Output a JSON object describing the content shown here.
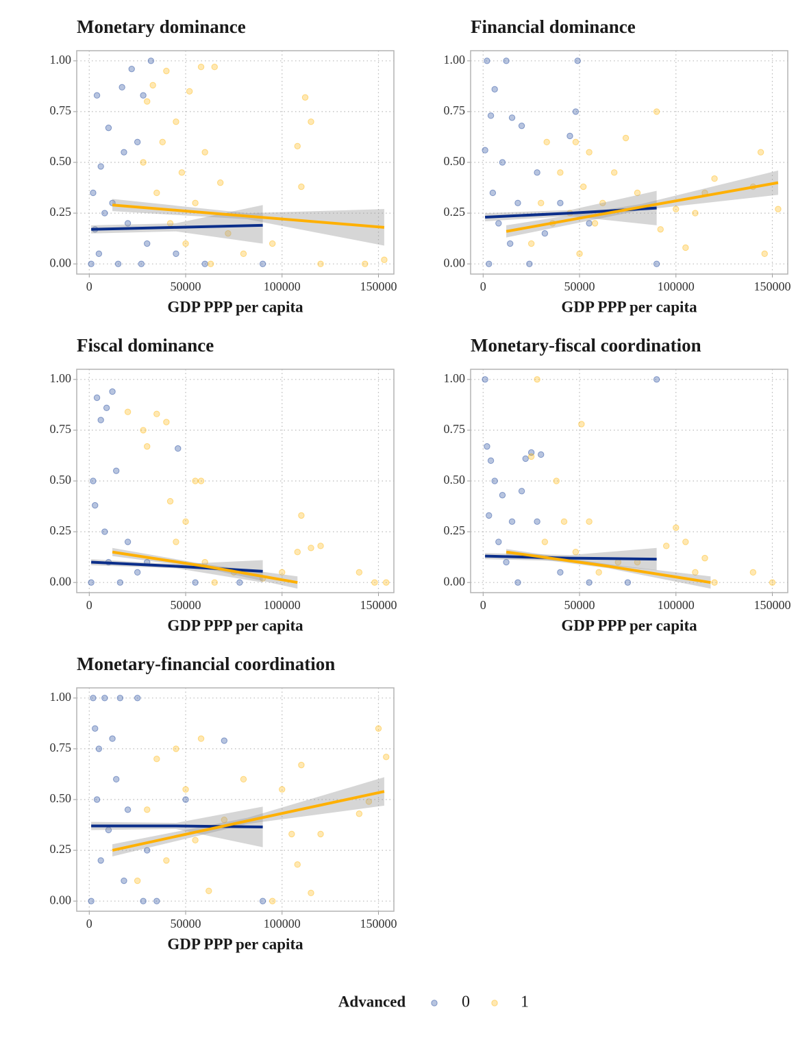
{
  "legend_title": "Advanced",
  "chart_data": [
    {
      "type": "scatter",
      "title": "Monetary dominance",
      "x_label": "GDP PPP per capita",
      "xlim": [
        -6500,
        158000
      ],
      "ylim": [
        -0.05,
        1.05
      ],
      "xticks": [
        0,
        50000,
        100000,
        150000
      ],
      "yticks": [
        {
          "value": 0,
          "label": "0.00"
        },
        {
          "value": 0.25,
          "label": "0.25"
        },
        {
          "value": 0.5,
          "label": "0.50"
        },
        {
          "value": 0.75,
          "label": "0.75"
        },
        {
          "value": 1,
          "label": "1.00"
        }
      ],
      "series": [
        {
          "name": "0",
          "color": "#123b96",
          "x": [
            1000,
            2000,
            3000,
            4000,
            5000,
            6000,
            8000,
            10000,
            12000,
            15000,
            17000,
            18000,
            20000,
            22000,
            25000,
            27000,
            28000,
            30000,
            32000,
            45000,
            60000,
            90000
          ],
          "values": [
            0,
            0.35,
            0.17,
            0.83,
            0.05,
            0.48,
            0.25,
            0.67,
            0.3,
            0,
            0.87,
            0.55,
            0.2,
            0.96,
            0.6,
            0,
            0.83,
            0.1,
            1,
            0.05,
            0,
            0
          ]
        },
        {
          "name": "1",
          "color": "#ffb300",
          "x": [
            28000,
            30000,
            33000,
            35000,
            38000,
            40000,
            42000,
            45000,
            48000,
            50000,
            52000,
            55000,
            58000,
            60000,
            63000,
            65000,
            68000,
            72000,
            80000,
            95000,
            108000,
            110000,
            112000,
            115000,
            120000,
            143000,
            153000
          ],
          "values": [
            0.5,
            0.8,
            0.88,
            0.35,
            0.6,
            0.95,
            0.2,
            0.7,
            0.45,
            0.1,
            0.85,
            0.3,
            0.97,
            0.55,
            0,
            0.97,
            0.4,
            0.15,
            0.05,
            0.1,
            0.58,
            0.38,
            0.82,
            0.7,
            0,
            0,
            0.02
          ]
        }
      ],
      "fit_lines": [
        {
          "color": "#0b2e8a",
          "x": [
            1000,
            45000,
            90000
          ],
          "values": [
            0.17,
            0.18,
            0.19
          ],
          "lower": [
            0.15,
            0.16,
            0.1
          ],
          "upper": [
            0.19,
            0.2,
            0.29
          ]
        },
        {
          "color": "#ffb000",
          "x": [
            12000,
            82000,
            153000
          ],
          "values": [
            0.29,
            0.235,
            0.18
          ],
          "lower": [
            0.26,
            0.22,
            0.09
          ],
          "upper": [
            0.32,
            0.25,
            0.27
          ]
        }
      ]
    },
    {
      "type": "scatter",
      "title": "Financial dominance",
      "x_label": "GDP PPP per capita",
      "xlim": [
        -6500,
        158000
      ],
      "ylim": [
        -0.05,
        1.05
      ],
      "xticks": [
        0,
        50000,
        100000,
        150000
      ],
      "yticks": [
        {
          "value": 0,
          "label": "0.00"
        },
        {
          "value": 0.25,
          "label": "0.25"
        },
        {
          "value": 0.5,
          "label": "0.50"
        },
        {
          "value": 0.75,
          "label": "0.75"
        },
        {
          "value": 1,
          "label": "1.00"
        }
      ],
      "series": [
        {
          "name": "0",
          "color": "#123b96",
          "x": [
            1000,
            2000,
            3000,
            4000,
            5000,
            6000,
            8000,
            10000,
            12000,
            14000,
            15000,
            18000,
            20000,
            24000,
            28000,
            32000,
            40000,
            45000,
            48000,
            49000,
            55000,
            90000
          ],
          "values": [
            0.56,
            1,
            0,
            0.73,
            0.35,
            0.86,
            0.2,
            0.5,
            1,
            0.1,
            0.72,
            0.3,
            0.68,
            0,
            0.45,
            0.15,
            0.3,
            0.63,
            0.75,
            1,
            0.2,
            0
          ]
        },
        {
          "name": "1",
          "color": "#ffb300",
          "x": [
            25000,
            30000,
            33000,
            36000,
            40000,
            45000,
            48000,
            50000,
            52000,
            55000,
            58000,
            62000,
            68000,
            74000,
            80000,
            90000,
            92000,
            100000,
            105000,
            110000,
            115000,
            120000,
            140000,
            144000,
            146000,
            153000
          ],
          "values": [
            0.1,
            0.3,
            0.6,
            0.2,
            0.45,
            0.25,
            0.6,
            0.05,
            0.38,
            0.55,
            0.2,
            0.3,
            0.45,
            0.62,
            0.35,
            0.75,
            0.17,
            0.27,
            0.08,
            0.25,
            0.35,
            0.42,
            0.38,
            0.55,
            0.05,
            0.27
          ]
        }
      ],
      "fit_lines": [
        {
          "color": "#0b2e8a",
          "x": [
            1000,
            45000,
            90000
          ],
          "values": [
            0.23,
            0.25,
            0.275
          ],
          "lower": [
            0.21,
            0.235,
            0.19
          ],
          "upper": [
            0.25,
            0.265,
            0.36
          ]
        },
        {
          "color": "#ffb000",
          "x": [
            12000,
            82000,
            153000
          ],
          "values": [
            0.16,
            0.28,
            0.4
          ],
          "lower": [
            0.13,
            0.265,
            0.34
          ],
          "upper": [
            0.19,
            0.295,
            0.46
          ]
        }
      ]
    },
    {
      "type": "scatter",
      "title": "Fiscal dominance",
      "x_label": "GDP PPP per capita",
      "xlim": [
        -6500,
        158000
      ],
      "ylim": [
        -0.05,
        1.05
      ],
      "xticks": [
        0,
        50000,
        100000,
        150000
      ],
      "yticks": [
        {
          "value": 0,
          "label": "0.00"
        },
        {
          "value": 0.25,
          "label": "0.25"
        },
        {
          "value": 0.5,
          "label": "0.50"
        },
        {
          "value": 0.75,
          "label": "0.75"
        },
        {
          "value": 1,
          "label": "1.00"
        }
      ],
      "series": [
        {
          "name": "0",
          "color": "#123b96",
          "x": [
            1000,
            2000,
            3000,
            4000,
            6000,
            8000,
            9000,
            10000,
            12000,
            14000,
            16000,
            20000,
            25000,
            30000,
            46000,
            55000,
            78000
          ],
          "values": [
            0,
            0.5,
            0.38,
            0.91,
            0.8,
            0.25,
            0.86,
            0.1,
            0.94,
            0.55,
            0,
            0.2,
            0.05,
            0.1,
            0.66,
            0,
            0
          ]
        },
        {
          "name": "1",
          "color": "#ffb300",
          "x": [
            20000,
            28000,
            30000,
            35000,
            40000,
            42000,
            45000,
            50000,
            55000,
            58000,
            60000,
            65000,
            75000,
            90000,
            100000,
            108000,
            110000,
            115000,
            120000,
            140000,
            148000,
            154000
          ],
          "values": [
            0.84,
            0.75,
            0.67,
            0.83,
            0.79,
            0.4,
            0.2,
            0.3,
            0.5,
            0.5,
            0.1,
            0,
            0.05,
            0.02,
            0.05,
            0.15,
            0.33,
            0.17,
            0.18,
            0.05,
            0,
            0
          ]
        }
      ],
      "fit_lines": [
        {
          "color": "#0b2e8a",
          "x": [
            1000,
            45000,
            90000
          ],
          "values": [
            0.1,
            0.08,
            0.055
          ],
          "lower": [
            0.085,
            0.07,
            0
          ],
          "upper": [
            0.115,
            0.09,
            0.11
          ]
        },
        {
          "color": "#ffb000",
          "x": [
            12000,
            60000,
            108000
          ],
          "values": [
            0.15,
            0.08,
            0
          ],
          "lower": [
            0.13,
            0.07,
            -0.03
          ],
          "upper": [
            0.17,
            0.09,
            0.03
          ]
        }
      ]
    },
    {
      "type": "scatter",
      "title": "Monetary-fiscal coordination",
      "x_label": "GDP PPP per capita",
      "xlim": [
        -6500,
        158000
      ],
      "ylim": [
        -0.05,
        1.05
      ],
      "xticks": [
        0,
        50000,
        100000,
        150000
      ],
      "yticks": [
        {
          "value": 0,
          "label": "0.00"
        },
        {
          "value": 0.25,
          "label": "0.25"
        },
        {
          "value": 0.5,
          "label": "0.50"
        },
        {
          "value": 0.75,
          "label": "0.75"
        },
        {
          "value": 1,
          "label": "1.00"
        }
      ],
      "series": [
        {
          "name": "0",
          "color": "#123b96",
          "x": [
            1000,
            2000,
            3000,
            4000,
            6000,
            8000,
            10000,
            12000,
            15000,
            18000,
            20000,
            22000,
            25000,
            28000,
            30000,
            40000,
            55000,
            75000,
            90000
          ],
          "values": [
            1,
            0.67,
            0.33,
            0.6,
            0.5,
            0.2,
            0.43,
            0.1,
            0.3,
            0,
            0.45,
            0.61,
            0.64,
            0.3,
            0.63,
            0.05,
            0,
            0,
            1
          ]
        },
        {
          "name": "1",
          "color": "#ffb300",
          "x": [
            25000,
            28000,
            32000,
            38000,
            42000,
            48000,
            51000,
            55000,
            60000,
            70000,
            80000,
            95000,
            100000,
            105000,
            110000,
            115000,
            120000,
            140000,
            150000
          ],
          "values": [
            0.62,
            1,
            0.2,
            0.5,
            0.3,
            0.15,
            0.78,
            0.3,
            0.05,
            0.1,
            0.1,
            0.18,
            0.27,
            0.2,
            0.05,
            0.12,
            0,
            0.05,
            0
          ]
        }
      ],
      "fit_lines": [
        {
          "color": "#0b2e8a",
          "x": [
            1000,
            45000,
            90000
          ],
          "values": [
            0.13,
            0.12,
            0.115
          ],
          "lower": [
            0.115,
            0.105,
            0.06
          ],
          "upper": [
            0.145,
            0.135,
            0.17
          ]
        },
        {
          "color": "#ffb000",
          "x": [
            12000,
            65000,
            118000
          ],
          "values": [
            0.15,
            0.08,
            0
          ],
          "lower": [
            0.135,
            0.07,
            -0.03
          ],
          "upper": [
            0.165,
            0.09,
            0.03
          ]
        }
      ]
    },
    {
      "type": "scatter",
      "title": "Monetary-financial coordination",
      "x_label": "GDP PPP per capita",
      "xlim": [
        -6500,
        158000
      ],
      "ylim": [
        -0.05,
        1.05
      ],
      "xticks": [
        0,
        50000,
        100000,
        150000
      ],
      "yticks": [
        {
          "value": 0,
          "label": "0.00"
        },
        {
          "value": 0.25,
          "label": "0.25"
        },
        {
          "value": 0.5,
          "label": "0.50"
        },
        {
          "value": 0.75,
          "label": "0.75"
        },
        {
          "value": 1,
          "label": "1.00"
        }
      ],
      "series": [
        {
          "name": "0",
          "color": "#123b96",
          "x": [
            1000,
            2000,
            3000,
            4000,
            5000,
            6000,
            8000,
            10000,
            12000,
            14000,
            16000,
            18000,
            20000,
            25000,
            28000,
            30000,
            35000,
            50000,
            70000,
            90000
          ],
          "values": [
            0,
            1,
            0.85,
            0.5,
            0.75,
            0.2,
            1,
            0.35,
            0.8,
            0.6,
            1,
            0.1,
            0.45,
            1,
            0,
            0.25,
            0,
            0.5,
            0.79,
            0
          ]
        },
        {
          "name": "1",
          "color": "#ffb300",
          "x": [
            25000,
            30000,
            35000,
            40000,
            45000,
            50000,
            55000,
            58000,
            62000,
            70000,
            80000,
            95000,
            100000,
            105000,
            108000,
            110000,
            115000,
            120000,
            140000,
            145000,
            150000,
            154000
          ],
          "values": [
            0.1,
            0.45,
            0.7,
            0.2,
            0.75,
            0.55,
            0.3,
            0.8,
            0.05,
            0.4,
            0.6,
            0,
            0.55,
            0.33,
            0.18,
            0.67,
            0.04,
            0.33,
            0.43,
            0.49,
            0.85,
            0.71
          ]
        }
      ],
      "fit_lines": [
        {
          "color": "#0b2e8a",
          "x": [
            1000,
            45000,
            90000
          ],
          "values": [
            0.37,
            0.37,
            0.365
          ],
          "lower": [
            0.35,
            0.355,
            0.265
          ],
          "upper": [
            0.39,
            0.385,
            0.465
          ]
        },
        {
          "color": "#ffb000",
          "x": [
            12000,
            82000,
            153000
          ],
          "values": [
            0.25,
            0.395,
            0.54
          ],
          "lower": [
            0.22,
            0.38,
            0.47
          ],
          "upper": [
            0.28,
            0.41,
            0.61
          ]
        }
      ]
    }
  ]
}
